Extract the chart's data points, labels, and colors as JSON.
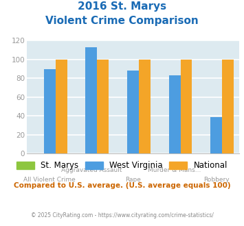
{
  "title_line1": "2016 St. Marys",
  "title_line2": "Violent Crime Comparison",
  "cat_labels_top": [
    "",
    "Aggravated Assault",
    "",
    "Murder & Mans...",
    ""
  ],
  "cat_labels_bot": [
    "All Violent Crime",
    "",
    "Rape",
    "",
    "Robbery"
  ],
  "st_marys": [
    0,
    0,
    0,
    0,
    0
  ],
  "west_virginia": [
    90,
    113,
    88,
    83,
    39
  ],
  "national": [
    100,
    100,
    100,
    100,
    100
  ],
  "colors": {
    "st_marys": "#8dc63f",
    "west_virginia": "#4d9de0",
    "national": "#f4a528"
  },
  "ylim": [
    0,
    120
  ],
  "yticks": [
    0,
    20,
    40,
    60,
    80,
    100,
    120
  ],
  "background_color": "#ddeaf0",
  "title_color": "#1a6bb5",
  "subtitle_text": "Compared to U.S. average. (U.S. average equals 100)",
  "subtitle_color": "#cc6600",
  "footer_text": "© 2025 CityRating.com - https://www.cityrating.com/crime-statistics/",
  "footer_color": "#888888",
  "legend_labels": [
    "St. Marys",
    "West Virginia",
    "National"
  ],
  "tick_label_color": "#999999",
  "grid_color": "#ffffff"
}
